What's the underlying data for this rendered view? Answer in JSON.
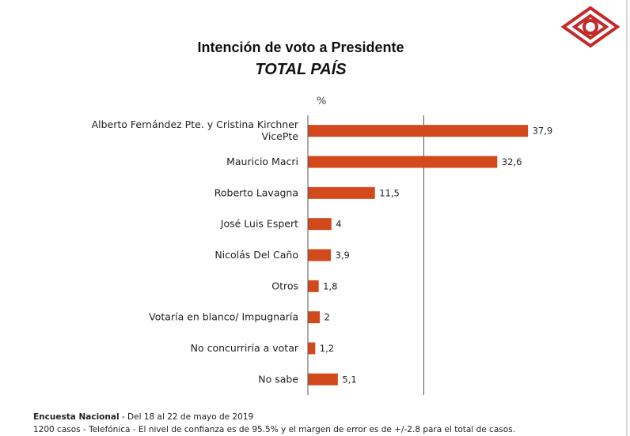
{
  "colors": {
    "bar": "#d2491c",
    "axis": "#555555",
    "logo": "#c42a2a"
  },
  "logo": {
    "icon": "diamond-logo-icon"
  },
  "chart_data": {
    "type": "bar",
    "orientation": "horizontal",
    "title": "Intención de voto a Presidente",
    "subtitle": "TOTAL PAÍS",
    "unit_label": "%",
    "categories": [
      [
        "Alberto Fernández Pte. y  Cristina Kirchner",
        "VicePte"
      ],
      [
        "Mauricio Macri"
      ],
      [
        "Roberto Lavagna"
      ],
      [
        "José Luis Espert"
      ],
      [
        "Nicolás Del Caño"
      ],
      [
        "Otros"
      ],
      [
        "Votaría en blanco/ Impugnaría"
      ],
      [
        "No concurriría a votar"
      ],
      [
        "No sabe"
      ]
    ],
    "values": [
      37.9,
      32.6,
      11.5,
      4,
      3.9,
      1.8,
      2,
      1.2,
      5.1
    ],
    "value_labels": [
      "37,9",
      "32,6",
      "11,5",
      "4",
      "3,9",
      "1,8",
      "2",
      "1,2",
      "5,1"
    ],
    "xlim": [
      0,
      40
    ],
    "reference_line": 20,
    "grid": false,
    "legend": "none"
  },
  "footer": {
    "line1_bold": "Encuesta Nacional",
    "line1_rest": " - Del 18 al 22 de mayo de 2019",
    "line2": "1200 casos - Telefónica  - El nivel de confianza es de 95.5% y el margen de error es de +/-2.8 para el total de casos."
  }
}
